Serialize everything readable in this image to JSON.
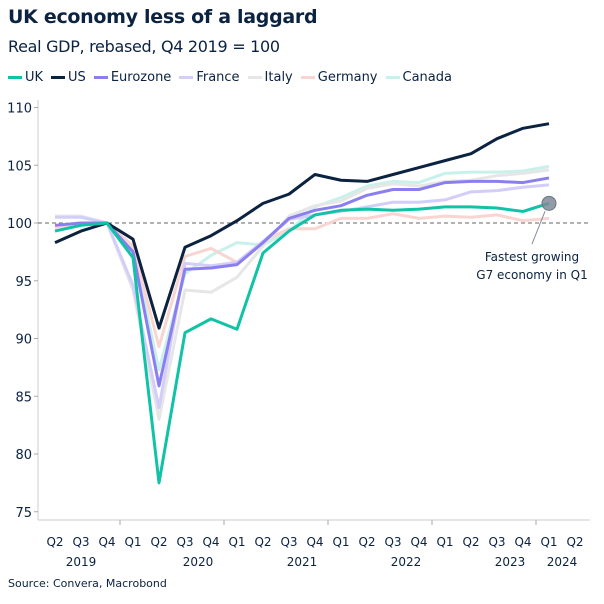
{
  "title": "UK economy less of a laggard",
  "subtitle": "Real GDP, rebased, Q4 2019 = 100",
  "source": "Source: Convera, Macrobond",
  "chart_data": {
    "type": "line",
    "x": [
      "Q2 2019",
      "Q3 2019",
      "Q4 2019",
      "Q1 2020",
      "Q2 2020",
      "Q3 2020",
      "Q4 2020",
      "Q1 2021",
      "Q2 2021",
      "Q3 2021",
      "Q4 2021",
      "Q1 2022",
      "Q2 2022",
      "Q3 2022",
      "Q4 2022",
      "Q1 2023",
      "Q2 2023",
      "Q3 2023",
      "Q4 2023",
      "Q1 2024"
    ],
    "x_tick_labels": [
      "Q2",
      "Q3",
      "Q4",
      "Q1",
      "Q2",
      "Q3",
      "Q4",
      "Q1",
      "Q2",
      "Q3",
      "Q4",
      "Q1",
      "Q2",
      "Q3",
      "Q4",
      "Q1",
      "Q2",
      "Q3",
      "Q4",
      "Q1",
      "Q2"
    ],
    "x_year_labels": [
      "2019",
      "2020",
      "2021",
      "2022",
      "2023",
      "2024"
    ],
    "ylim": [
      74,
      111
    ],
    "yticks": [
      75,
      80,
      85,
      90,
      95,
      100,
      105,
      110
    ],
    "reference_line": 100,
    "grid": false,
    "legend_placement": "top",
    "series": [
      {
        "name": "UK",
        "color": "#10c2a6",
        "values": [
          99.3,
          99.8,
          100,
          97,
          77.5,
          90.5,
          91.7,
          90.8,
          97.4,
          99.3,
          100.7,
          101.1,
          101.2,
          101.1,
          101.2,
          101.4,
          101.4,
          101.3,
          101.0,
          101.7
        ]
      },
      {
        "name": "US",
        "color": "#0b2240",
        "values": [
          98.3,
          99.3,
          100,
          98.6,
          90.9,
          97.9,
          98.9,
          100.2,
          101.7,
          102.5,
          104.2,
          103.7,
          103.6,
          104.2,
          104.8,
          105.4,
          106.0,
          107.3,
          108.2,
          108.6
        ]
      },
      {
        "name": "Eurozone",
        "color": "#8b7ff0",
        "values": [
          99.8,
          100,
          100,
          97.5,
          85.9,
          96,
          96.1,
          96.4,
          98.3,
          100.4,
          101.1,
          101.5,
          102.4,
          102.9,
          102.9,
          103.5,
          103.6,
          103.6,
          103.5,
          103.9
        ]
      },
      {
        "name": "France",
        "color": "#d3cdf9",
        "values": [
          100.5,
          100.5,
          100,
          94.6,
          84,
          96.5,
          96.3,
          96.6,
          98.4,
          100.3,
          100.7,
          101,
          101.4,
          101.8,
          101.8,
          102.0,
          102.7,
          102.8,
          103.1,
          103.3
        ]
      },
      {
        "name": "Italy",
        "color": "#e6e6e6",
        "values": [
          100.6,
          100.6,
          100,
          94.2,
          83,
          94.2,
          94,
          95.3,
          98,
          100.6,
          101.5,
          101.9,
          103,
          103.4,
          103.2,
          103.6,
          103.7,
          104.1,
          104.3,
          104.6
        ]
      },
      {
        "name": "Germany",
        "color": "#f9d5d2",
        "values": [
          99.6,
          100,
          100,
          98,
          89.3,
          97.1,
          97.8,
          96.6,
          98.4,
          99.5,
          99.5,
          100.4,
          100.4,
          100.8,
          100.4,
          100.6,
          100.5,
          100.7,
          100.2,
          100.4
        ]
      },
      {
        "name": "Canada",
        "color": "#c9f1ec",
        "values": [
          99.8,
          100,
          100,
          97.8,
          87.3,
          95.6,
          97.2,
          98.3,
          98.1,
          99.3,
          101.4,
          102.2,
          103.2,
          103.6,
          103.5,
          104.3,
          104.4,
          104.4,
          104.5,
          104.9
        ]
      }
    ],
    "annotation": {
      "lines": [
        "Fastest growing",
        "G7 economy in Q1"
      ],
      "series": "UK",
      "x": "Q1 2024",
      "y": 101.7,
      "marker_color": "#7f8b99"
    }
  }
}
